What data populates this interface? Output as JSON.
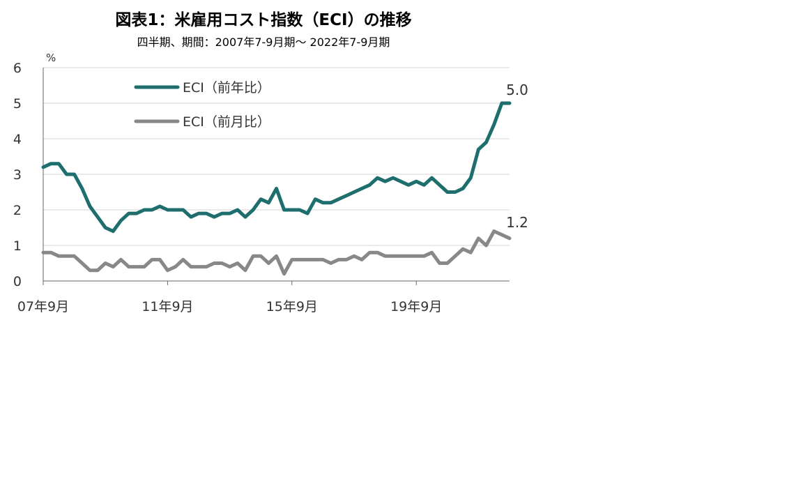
{
  "chart_data": {
    "type": "line",
    "title": "図表1：米雇用コスト指数（ECI）の推移",
    "subtitle": "四半期、期間：2007年7-9月期～ 2022年7-9月期",
    "ylabel": "%",
    "ylim": [
      0,
      6
    ],
    "yticks": [
      "0",
      "1",
      "2",
      "3",
      "4",
      "5",
      "6"
    ],
    "xtick_labels": [
      {
        "label": "07年9月",
        "index": 0
      },
      {
        "label": "11年9月",
        "index": 16
      },
      {
        "label": "15年9月",
        "index": 32
      },
      {
        "label": "19年9月",
        "index": 48
      }
    ],
    "grid": true,
    "legend_position": "top-left",
    "series": [
      {
        "name": "ECI（前年比）",
        "color": "#1f6e6e",
        "end_label": "5.0",
        "values": [
          3.2,
          3.3,
          3.3,
          3.0,
          3.0,
          2.6,
          2.1,
          1.8,
          1.5,
          1.4,
          1.7,
          1.9,
          1.9,
          2.0,
          2.0,
          2.1,
          2.0,
          2.0,
          2.0,
          1.8,
          1.9,
          1.9,
          1.8,
          1.9,
          1.9,
          2.0,
          1.8,
          2.0,
          2.3,
          2.2,
          2.6,
          2.0,
          2.0,
          2.0,
          1.9,
          2.3,
          2.2,
          2.2,
          2.3,
          2.4,
          2.5,
          2.6,
          2.7,
          2.9,
          2.8,
          2.9,
          2.8,
          2.7,
          2.8,
          2.7,
          2.9,
          2.7,
          2.5,
          2.5,
          2.6,
          2.9,
          3.7,
          3.9,
          4.4,
          5.0,
          5.0
        ]
      },
      {
        "name": "ECI（前月比）",
        "color": "#888888",
        "end_label": "1.2",
        "values": [
          0.8,
          0.8,
          0.7,
          0.7,
          0.7,
          0.5,
          0.3,
          0.3,
          0.5,
          0.4,
          0.6,
          0.4,
          0.4,
          0.4,
          0.6,
          0.6,
          0.3,
          0.4,
          0.6,
          0.4,
          0.4,
          0.4,
          0.5,
          0.5,
          0.4,
          0.5,
          0.3,
          0.7,
          0.7,
          0.5,
          0.7,
          0.2,
          0.6,
          0.6,
          0.6,
          0.6,
          0.6,
          0.5,
          0.6,
          0.6,
          0.7,
          0.6,
          0.8,
          0.8,
          0.7,
          0.7,
          0.7,
          0.7,
          0.7,
          0.7,
          0.8,
          0.5,
          0.5,
          0.7,
          0.9,
          0.8,
          1.2,
          1.0,
          1.4,
          1.3,
          1.2
        ]
      }
    ]
  }
}
